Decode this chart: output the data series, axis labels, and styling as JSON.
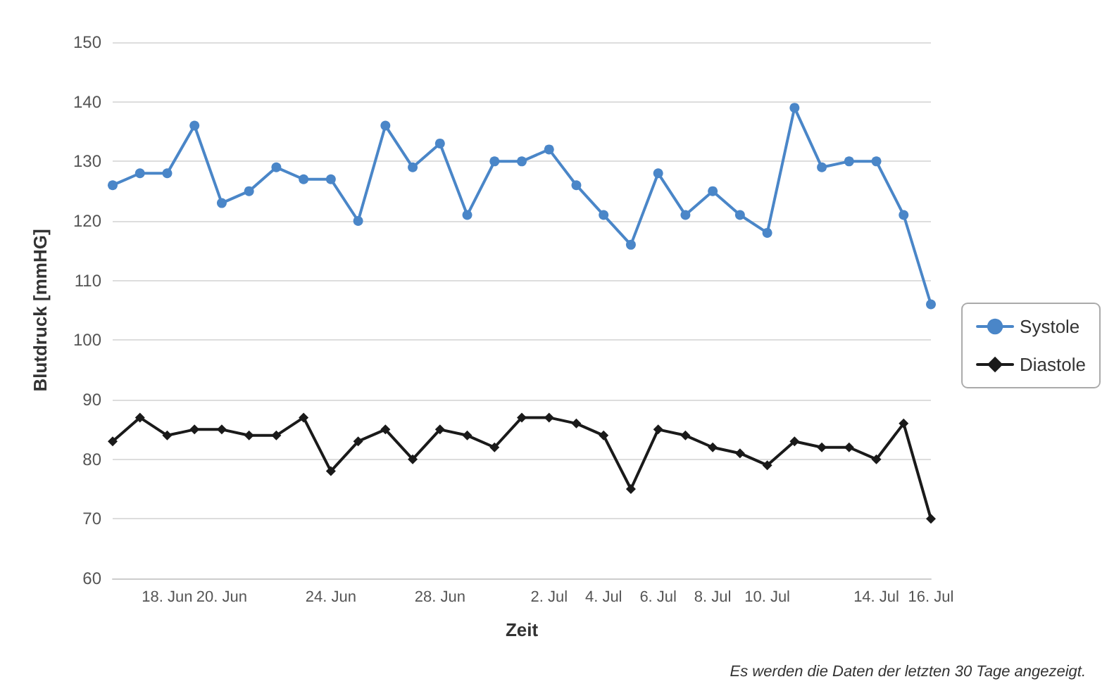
{
  "chart_data": {
    "type": "line",
    "xlabel": "Zeit",
    "ylabel": "Blutdruck [mmHG]",
    "categories": [
      null,
      null,
      "18. Jun",
      null,
      "20. Jun",
      null,
      null,
      null,
      "24. Jun",
      null,
      null,
      null,
      "28. Jun",
      null,
      null,
      null,
      "2. Jul",
      null,
      "4. Jul",
      null,
      "6. Jul",
      null,
      "8. Jul",
      null,
      "10. Jul",
      null,
      null,
      null,
      "14. Jul",
      null,
      "16. Jul"
    ],
    "series": [
      {
        "name": "Systole",
        "color": "#4a86c8",
        "marker": "circle",
        "values": [
          126,
          128,
          128,
          136,
          123,
          125,
          129,
          127,
          127,
          120,
          136,
          129,
          133,
          121,
          130,
          130,
          132,
          126,
          121,
          116,
          128,
          121,
          125,
          121,
          118,
          139,
          129,
          130,
          130,
          121,
          106
        ]
      },
      {
        "name": "Diastole",
        "color": "#1a1a1a",
        "marker": "diamond",
        "values": [
          83,
          87,
          84,
          85,
          85,
          84,
          84,
          87,
          78,
          83,
          85,
          80,
          85,
          84,
          82,
          87,
          87,
          86,
          84,
          75,
          85,
          84,
          82,
          81,
          79,
          83,
          82,
          82,
          80,
          86,
          70
        ]
      }
    ],
    "ylim": [
      60,
      150
    ],
    "yticks": [
      60,
      70,
      80,
      90,
      100,
      110,
      120,
      130,
      140,
      150
    ],
    "grid": "y",
    "legend": "right",
    "line_style": "solid",
    "annotations": [
      "Es werden die Daten der letzten 30 Tage angezeigt."
    ]
  }
}
